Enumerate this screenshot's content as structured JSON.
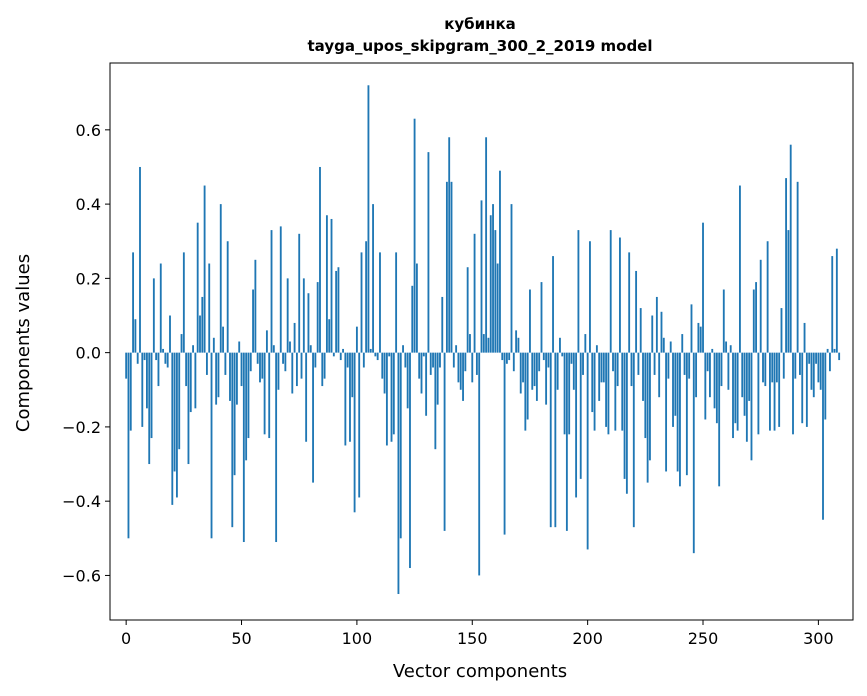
{
  "chart_data": {
    "type": "bar",
    "title": "кубинка",
    "subtitle": "tayga_upos_skipgram_300_2_2019 model",
    "xlabel": "Vector components",
    "ylabel": "Components values",
    "xlim": [
      -7,
      315
    ],
    "ylim": [
      -0.72,
      0.78
    ],
    "xticks": [
      0,
      50,
      100,
      150,
      200,
      250,
      300
    ],
    "yticks": [
      -0.6,
      -0.4,
      -0.2,
      0.0,
      0.2,
      0.4,
      0.6
    ],
    "ytick_labels": [
      "−0.6",
      "−0.4",
      "−0.2",
      "0.0",
      "0.2",
      "0.4",
      "0.6"
    ],
    "grid": false,
    "bar_color": "#1f77b4",
    "values": [
      -0.07,
      -0.5,
      -0.21,
      0.27,
      0.09,
      -0.03,
      0.5,
      -0.2,
      -0.02,
      -0.15,
      -0.3,
      -0.23,
      0.2,
      -0.02,
      -0.09,
      0.24,
      0.01,
      -0.03,
      -0.04,
      0.1,
      -0.41,
      -0.32,
      -0.39,
      -0.26,
      0.05,
      0.27,
      -0.09,
      -0.3,
      -0.16,
      0.02,
      -0.15,
      0.35,
      0.1,
      0.15,
      0.45,
      -0.06,
      0.24,
      -0.5,
      0.04,
      -0.14,
      -0.12,
      0.4,
      0.07,
      -0.06,
      0.3,
      -0.13,
      -0.47,
      -0.33,
      -0.14,
      0.03,
      -0.09,
      -0.51,
      -0.29,
      -0.23,
      -0.05,
      0.17,
      0.25,
      -0.03,
      -0.08,
      -0.07,
      -0.22,
      0.06,
      -0.23,
      0.33,
      0.02,
      -0.51,
      -0.1,
      0.34,
      -0.03,
      -0.05,
      0.2,
      0.03,
      -0.11,
      0.08,
      -0.09,
      0.32,
      -0.07,
      0.2,
      -0.24,
      0.16,
      0.02,
      -0.35,
      -0.04,
      0.19,
      0.5,
      -0.09,
      -0.07,
      0.37,
      0.09,
      0.36,
      -0.01,
      0.22,
      0.23,
      -0.02,
      0.01,
      -0.25,
      -0.04,
      -0.24,
      -0.12,
      -0.43,
      0.07,
      -0.39,
      0.27,
      -0.04,
      0.3,
      0.72,
      0.01,
      0.4,
      -0.01,
      -0.02,
      0.27,
      -0.07,
      -0.11,
      -0.25,
      -0.01,
      -0.24,
      -0.22,
      0.27,
      -0.65,
      -0.5,
      0.02,
      -0.04,
      -0.15,
      -0.58,
      0.18,
      0.63,
      0.24,
      -0.07,
      -0.11,
      -0.01,
      -0.17,
      0.54,
      -0.06,
      -0.04,
      -0.26,
      -0.14,
      -0.04,
      0.15,
      -0.48,
      0.46,
      0.58,
      0.46,
      -0.04,
      0.02,
      -0.08,
      -0.1,
      -0.13,
      -0.05,
      0.23,
      0.05,
      -0.08,
      0.32,
      -0.06,
      -0.6,
      0.41,
      0.05,
      0.58,
      0.04,
      0.37,
      0.4,
      0.33,
      0.24,
      0.49,
      -0.02,
      -0.49,
      -0.03,
      -0.02,
      0.4,
      -0.05,
      0.06,
      0.04,
      -0.11,
      -0.08,
      -0.21,
      -0.18,
      0.17,
      -0.1,
      -0.09,
      -0.13,
      -0.05,
      0.19,
      -0.02,
      -0.14,
      -0.04,
      -0.47,
      0.26,
      -0.47,
      -0.1,
      0.04,
      -0.01,
      -0.22,
      -0.48,
      -0.22,
      -0.03,
      -0.1,
      -0.39,
      0.33,
      -0.34,
      -0.06,
      0.05,
      -0.53,
      0.3,
      -0.16,
      -0.21,
      0.02,
      -0.13,
      -0.08,
      -0.08,
      -0.2,
      -0.22,
      0.33,
      -0.05,
      -0.21,
      -0.09,
      0.31,
      -0.21,
      -0.34,
      -0.38,
      0.27,
      -0.09,
      -0.47,
      0.22,
      -0.06,
      0.12,
      -0.13,
      -0.23,
      -0.35,
      -0.29,
      0.1,
      -0.06,
      0.15,
      -0.12,
      0.11,
      0.04,
      -0.32,
      -0.07,
      0.03,
      -0.2,
      -0.17,
      -0.32,
      -0.36,
      0.05,
      -0.06,
      -0.33,
      -0.07,
      0.13,
      -0.54,
      -0.12,
      0.08,
      0.07,
      0.35,
      -0.18,
      -0.05,
      -0.12,
      0.01,
      -0.15,
      -0.19,
      -0.36,
      -0.09,
      0.17,
      0.03,
      -0.1,
      0.02,
      -0.23,
      -0.19,
      -0.21,
      0.45,
      -0.12,
      -0.17,
      -0.24,
      -0.13,
      -0.29,
      0.17,
      0.19,
      -0.22,
      0.25,
      -0.08,
      -0.09,
      0.3,
      -0.21,
      -0.08,
      -0.21,
      -0.08,
      -0.2,
      0.12,
      -0.07,
      0.47,
      0.33,
      0.56,
      -0.22,
      -0.07,
      0.46,
      -0.06,
      -0.19,
      0.08,
      -0.2,
      -0.03,
      -0.1,
      -0.12,
      -0.03,
      -0.08,
      -0.1,
      -0.45,
      -0.18,
      0.01,
      -0.05,
      0.26,
      0.01,
      0.28,
      -0.02
    ]
  }
}
